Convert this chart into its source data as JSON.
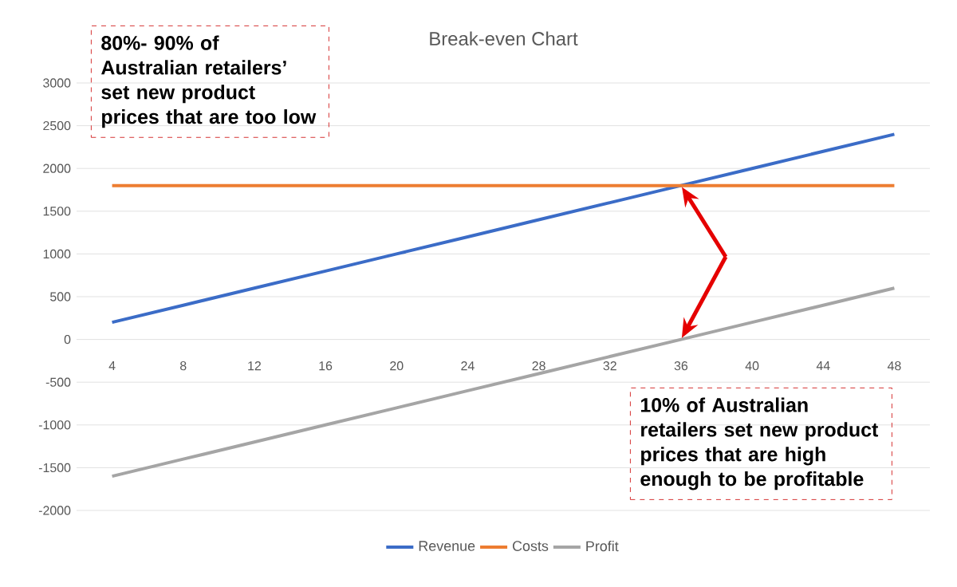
{
  "chart_data": {
    "type": "line",
    "title": "Break-even Chart",
    "categories": [
      "4",
      "8",
      "12",
      "16",
      "20",
      "24",
      "28",
      "32",
      "36",
      "40",
      "44",
      "48"
    ],
    "series": [
      {
        "name": "Revenue",
        "color": "#3b6cc7",
        "values": [
          200,
          400,
          600,
          800,
          1000,
          1200,
          1400,
          1600,
          1800,
          2000,
          2200,
          2400
        ]
      },
      {
        "name": "Costs",
        "color": "#ed7d31",
        "values": [
          1800,
          1800,
          1800,
          1800,
          1800,
          1800,
          1800,
          1800,
          1800,
          1800,
          1800,
          1800
        ]
      },
      {
        "name": "Profit",
        "color": "#a5a5a5",
        "values": [
          -1600,
          -1400,
          -1200,
          -1000,
          -800,
          -600,
          -400,
          -200,
          0,
          200,
          400,
          600
        ]
      }
    ],
    "ylim": [
      -2000,
      3000
    ],
    "yticks": [
      -2000,
      -1500,
      -1000,
      -500,
      0,
      500,
      1000,
      1500,
      2000,
      2500,
      3000
    ],
    "grid": "y",
    "legend": "bottom",
    "marker": "none",
    "line_style": "solid",
    "annotations": [
      "80%- 90% of Australian retailers’ set new product prices that are too low",
      {
        "text": "10% of Australian retailers set new product prices that are high enough to be profitable",
        "x": "36",
        "y": 0
      }
    ]
  }
}
